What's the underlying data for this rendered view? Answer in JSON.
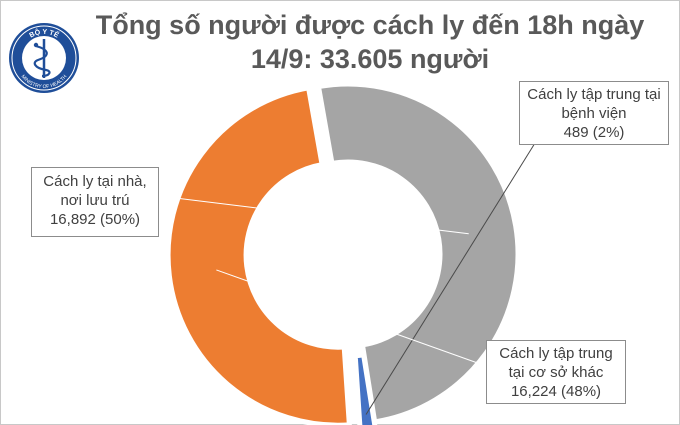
{
  "header": {
    "title_line1": "Tổng số người được cách ly đến 18h ngày",
    "title_line2": "14/9: 33.605 người"
  },
  "logo": {
    "icon": "ministry-of-health-caduceus-icon",
    "top_text": "BỘ Y TẾ",
    "bottom_text": "MINISTRY OF HEALTH"
  },
  "chart_data": {
    "type": "pie",
    "variant": "donut",
    "title": "Tổng số người được cách ly đến 18h ngày 14/9: 33.605 người",
    "slices": [
      {
        "label_line1": "Cách ly tại nhà,",
        "label_line2": "nơi lưu trú",
        "value": 16892,
        "value_text": "16,892 (50%)",
        "percent": 50,
        "color": "#a5a5a5"
      },
      {
        "label_line1": "Cách ly tập trung tại",
        "label_line2": "bệnh viện",
        "value": 489,
        "value_text": "489 (2%)",
        "percent": 2,
        "color": "#4472c4"
      },
      {
        "label_line1": "Cách ly tập trung",
        "label_line2": "tại cơ sở khác",
        "value": 16224,
        "value_text": "16,224 (48%)",
        "percent": 48,
        "color": "#ed7d31"
      }
    ],
    "legend": "callouts"
  }
}
